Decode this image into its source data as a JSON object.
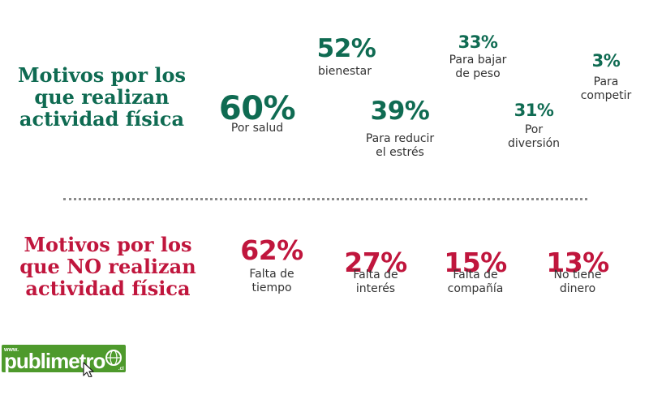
{
  "chart_data": [
    {
      "type": "table",
      "title": "Motivos por los que realizan actividad física",
      "title_lines": [
        "Motivos por los",
        "que realizan",
        "actividad física"
      ],
      "items": [
        {
          "value": 60,
          "display": "60%",
          "label_lines": [
            "Por salud"
          ]
        },
        {
          "value": 52,
          "display": "52%",
          "label_lines": [
            "bienestar"
          ]
        },
        {
          "value": 39,
          "display": "39%",
          "label_lines": [
            "Para reducir",
            "el estrés"
          ]
        },
        {
          "value": 33,
          "display": "33%",
          "label_lines": [
            "Para bajar",
            "de peso"
          ]
        },
        {
          "value": 31,
          "display": "31%",
          "label_lines": [
            "Por",
            "diversión"
          ]
        },
        {
          "value": 3,
          "display": "3%",
          "label_lines": [
            "Para",
            "competir"
          ]
        }
      ]
    },
    {
      "type": "table",
      "title": "Motivos por los que NO realizan actividad física",
      "title_lines": [
        "Motivos por los",
        "que NO realizan",
        "actividad física"
      ],
      "items": [
        {
          "value": 62,
          "display": "62%",
          "label_lines": [
            "Falta de",
            "tiempo"
          ]
        },
        {
          "value": 27,
          "display": "27%",
          "label_lines": [
            "Falta de",
            "interés"
          ]
        },
        {
          "value": 15,
          "display": "15%",
          "label_lines": [
            "Falta de",
            "compañía"
          ]
        },
        {
          "value": 13,
          "display": "13%",
          "label_lines": [
            "No tiene",
            "dinero"
          ]
        }
      ]
    }
  ],
  "colors": {
    "positive": "#0f6b52",
    "negative": "#c0163d",
    "logo_green": "#4e9a2c"
  },
  "logo": {
    "prefix": "www.",
    "name": "publimetro",
    "suffix": ".cl",
    "icons": [
      "globe-icon",
      "cursor-icon"
    ]
  }
}
